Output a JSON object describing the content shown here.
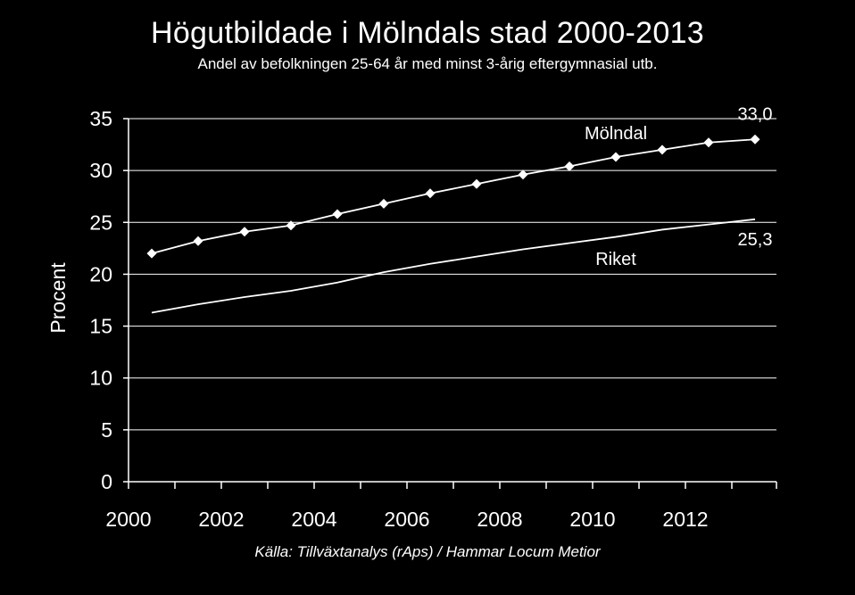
{
  "chart_data": {
    "type": "line",
    "title": "Högutbildade i Mölndals stad 2000-2013",
    "subtitle": "Andel av befolkningen 25-64 år med minst 3-årig eftergymnasial utb.",
    "source": "Källa: Tillväxtanalys (rAps) / Hammar Locum Metior",
    "ylabel": "Procent",
    "xlabel": "",
    "ylim": [
      0,
      35
    ],
    "yticks": [
      0,
      5,
      10,
      15,
      20,
      25,
      30,
      35
    ],
    "x": [
      2000,
      2001,
      2002,
      2003,
      2004,
      2005,
      2006,
      2007,
      2008,
      2009,
      2010,
      2011,
      2012,
      2013
    ],
    "xtick_labels": [
      "2000",
      "2002",
      "2004",
      "2006",
      "2008",
      "2010",
      "2012"
    ],
    "grid": true,
    "series": [
      {
        "name": "Mölndal",
        "color": "#ffffff",
        "marker": "diamond",
        "values": [
          22.0,
          23.2,
          24.1,
          24.7,
          25.8,
          26.8,
          27.8,
          28.7,
          29.6,
          30.4,
          31.3,
          32.0,
          32.7,
          33.0
        ],
        "end_label": "33,0"
      },
      {
        "name": "Riket",
        "color": "#ffffff",
        "marker": "none",
        "values": [
          16.3,
          17.1,
          17.8,
          18.4,
          19.2,
          20.2,
          21.0,
          21.7,
          22.4,
          23.0,
          23.6,
          24.3,
          24.8,
          25.3
        ],
        "end_label": "25,3"
      }
    ]
  }
}
